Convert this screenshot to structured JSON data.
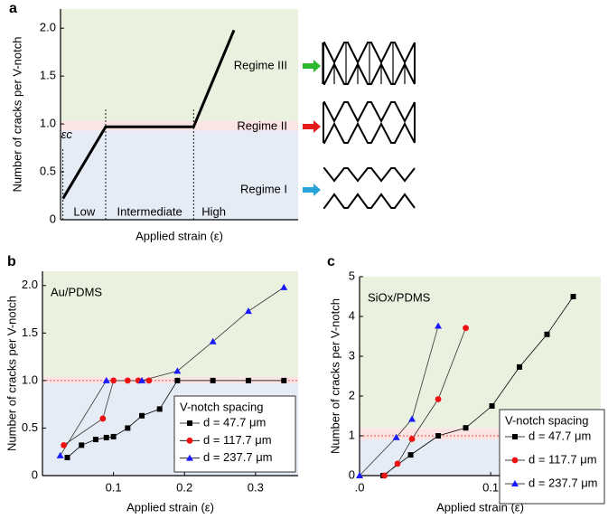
{
  "chart_data": [
    {
      "type": "line",
      "panel_label": "a",
      "ylabel": "Number of cracks per V-notch",
      "xlabel": "Applied strain (ε)",
      "annotation": "εc",
      "region_labels": [
        "Low",
        "Intermediate",
        "High"
      ],
      "regime_labels": [
        "Regime III",
        "Regime II",
        "Regime I"
      ],
      "regime_colors": [
        "#2db92d",
        "#e41a1c",
        "#29a3dc"
      ],
      "x": [
        0.01,
        0.19,
        0.56,
        0.73
      ],
      "values": [
        0.22,
        0.97,
        0.97,
        1.98
      ],
      "color": "#000000",
      "xlim": [
        0,
        1
      ],
      "ylim": [
        0,
        2.2
      ],
      "yticks": [
        0,
        0.5,
        {
          "value": 1,
          "label": "1.0"
        },
        1.5,
        {
          "value": 2,
          "label": "2.0"
        }
      ],
      "bands": [
        {
          "from": 0,
          "to": 0.93,
          "color": "#e6ecf5"
        },
        {
          "from": 0.93,
          "to": 1.03,
          "color": "#fbe4e4"
        },
        {
          "from": 1.03,
          "to": 2.2,
          "color": "#eaf1de"
        }
      ]
    },
    {
      "type": "line",
      "panel_label": "b",
      "title": "Au/PDMS",
      "ylabel": "Number of cracks per V-notch",
      "xlabel": "Applied strain (ε)",
      "xlim": [
        0,
        0.36
      ],
      "ylim": [
        0,
        2.15
      ],
      "xticks": [
        0.1,
        0.2,
        0.3
      ],
      "yticks": [
        0,
        0.5,
        {
          "value": 1,
          "label": "1.0"
        },
        1.5,
        {
          "value": 2,
          "label": "2.0"
        }
      ],
      "reference_line": 1,
      "bands": [
        {
          "from": 0,
          "to": 0.97,
          "color": "#e6ecf5"
        },
        {
          "from": 0.97,
          "to": 1.04,
          "color": "#fbe4e4"
        },
        {
          "from": 1.04,
          "to": 2.15,
          "color": "#eaf1de"
        }
      ],
      "legend": {
        "title": "V-notch spacing",
        "corner": "lower right"
      },
      "series": [
        {
          "name": "d = 47.7 μm",
          "color": "#000000",
          "marker": "square",
          "x": [
            0.035,
            0.055,
            0.075,
            0.09,
            0.1,
            0.12,
            0.14,
            0.165,
            0.19,
            0.24,
            0.29,
            0.34
          ],
          "values": [
            0.19,
            0.32,
            0.38,
            0.4,
            0.41,
            0.5,
            0.63,
            0.7,
            1.0,
            1.0,
            1.0,
            1.0
          ]
        },
        {
          "name": "d = 117.7 μm",
          "color": "#ee1111",
          "marker": "circle",
          "x": [
            0.03,
            0.085,
            0.1,
            0.12,
            0.135,
            0.15
          ],
          "values": [
            0.32,
            0.6,
            1.0,
            1.0,
            1.0,
            1.0
          ]
        },
        {
          "name": "d = 237.7 μm",
          "color": "#1a1aff",
          "marker": "triangle",
          "x": [
            0.025,
            0.09,
            0.14,
            0.19,
            0.24,
            0.29,
            0.34
          ],
          "values": [
            0.21,
            1.0,
            1.0,
            1.1,
            1.41,
            1.73,
            1.98
          ]
        }
      ]
    },
    {
      "type": "line",
      "panel_label": "c",
      "title": "SiOx/PDMS",
      "ylabel": "Number of cracks per V-notch",
      "xlabel": "Applied strain (ε)",
      "xlim": [
        0,
        0.184
      ],
      "ylim": [
        0,
        5
      ],
      "xticks": [
        {
          "value": 0,
          "label": ".0"
        },
        0.1
      ],
      "yticks": [
        0,
        1,
        2,
        3,
        4,
        5
      ],
      "reference_line": 1,
      "bands": [
        {
          "from": 0,
          "to": 0.9,
          "color": "#e6ecf5"
        },
        {
          "from": 0.9,
          "to": 1.2,
          "color": "#fbe4e4"
        },
        {
          "from": 1.2,
          "to": 5,
          "color": "#eaf1de"
        }
      ],
      "legend": {
        "title": "V-notch spacing",
        "corner": "lower right"
      },
      "series": [
        {
          "name": "d = 47.7 μm",
          "color": "#000000",
          "marker": "square",
          "x": [
            0.018,
            0.039,
            0.06,
            0.081,
            0.101,
            0.122,
            0.143,
            0.163
          ],
          "values": [
            0,
            0.52,
            1.0,
            1.2,
            1.75,
            2.73,
            3.55,
            4.5
          ]
        },
        {
          "name": "d = 117.7 μm",
          "color": "#ee1111",
          "marker": "circle",
          "x": [
            0.019,
            0.029,
            0.04,
            0.06,
            0.081
          ],
          "values": [
            0,
            0.3,
            0.92,
            1.92,
            3.71
          ]
        },
        {
          "name": "d = 237.7 μm",
          "color": "#1a1aff",
          "marker": "triangle",
          "x": [
            0,
            0.028,
            0.04,
            0.06
          ],
          "values": [
            0,
            0.96,
            1.42,
            3.76
          ]
        }
      ]
    }
  ]
}
